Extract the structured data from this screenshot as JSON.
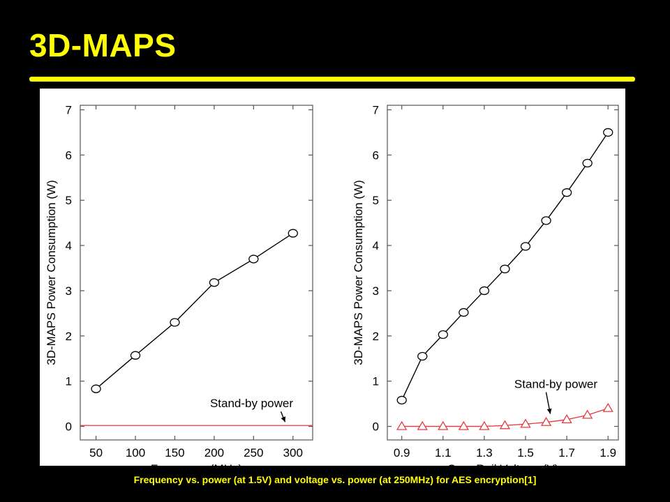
{
  "slide": {
    "title": "3D-MAPS",
    "caption": "Frequency vs. power (at 1.5V) and voltage vs. power (at 250MHz) for AES encryption[1]"
  },
  "colors": {
    "title": "#ffff00",
    "background": "#000000",
    "series_main": "#000000",
    "series_standby": "#e8383d"
  },
  "chart_data": [
    {
      "type": "line",
      "xlabel": "Frequency (MHz)",
      "ylabel": "3D-MAPS Power Consumption (W)",
      "xlim": [
        30,
        325
      ],
      "ylim": [
        -0.3,
        7.1
      ],
      "xticks": [
        50,
        100,
        150,
        200,
        250,
        300
      ],
      "xtick_labels": [
        "50",
        "100",
        "150",
        "200",
        "250",
        "300"
      ],
      "yticks": [
        0,
        1,
        2,
        3,
        4,
        5,
        6,
        7
      ],
      "grid": false,
      "series": [
        {
          "marker": "circle",
          "color": "#000000",
          "x": [
            50,
            100,
            150,
            200,
            250,
            300
          ],
          "y": [
            0.83,
            1.57,
            2.3,
            3.18,
            3.7,
            4.27
          ]
        },
        {
          "marker": "none",
          "color": "#e8383d",
          "style": "horizontal-line",
          "x": [
            30,
            325
          ],
          "y": [
            0.02,
            0.02
          ]
        }
      ],
      "annotations": [
        {
          "text": "Stand-by power",
          "arrow_to": [
            290,
            0.02
          ]
        }
      ]
    },
    {
      "type": "line",
      "xlabel": "Core Rail Voltage (V)",
      "ylabel": "3D-MAPS Power Consumption (W)",
      "xlim": [
        0.83,
        1.95
      ],
      "ylim": [
        -0.3,
        7.1
      ],
      "xticks": [
        0.9,
        1.1,
        1.3,
        1.5,
        1.7,
        1.9
      ],
      "xtick_labels": [
        "0.9",
        "1.1",
        "1.3",
        "1.5",
        "1.7",
        "1.9"
      ],
      "yticks": [
        0,
        1,
        2,
        3,
        4,
        5,
        6,
        7
      ],
      "grid": false,
      "series": [
        {
          "marker": "circle",
          "color": "#000000",
          "x": [
            0.9,
            1.0,
            1.1,
            1.2,
            1.3,
            1.4,
            1.5,
            1.6,
            1.7,
            1.8,
            1.9
          ],
          "y": [
            0.58,
            1.55,
            2.03,
            2.52,
            3.0,
            3.48,
            3.98,
            4.55,
            5.17,
            5.82,
            6.5
          ]
        },
        {
          "marker": "triangle",
          "color": "#e8383d",
          "x": [
            0.9,
            1.0,
            1.1,
            1.2,
            1.3,
            1.4,
            1.5,
            1.6,
            1.7,
            1.8,
            1.9
          ],
          "y": [
            0.0,
            0.0,
            0.0,
            0.0,
            0.0,
            0.02,
            0.05,
            0.09,
            0.15,
            0.25,
            0.4
          ]
        }
      ],
      "annotations": [
        {
          "text": "Stand-by power",
          "arrow_to": [
            1.62,
            0.2
          ]
        }
      ]
    }
  ]
}
